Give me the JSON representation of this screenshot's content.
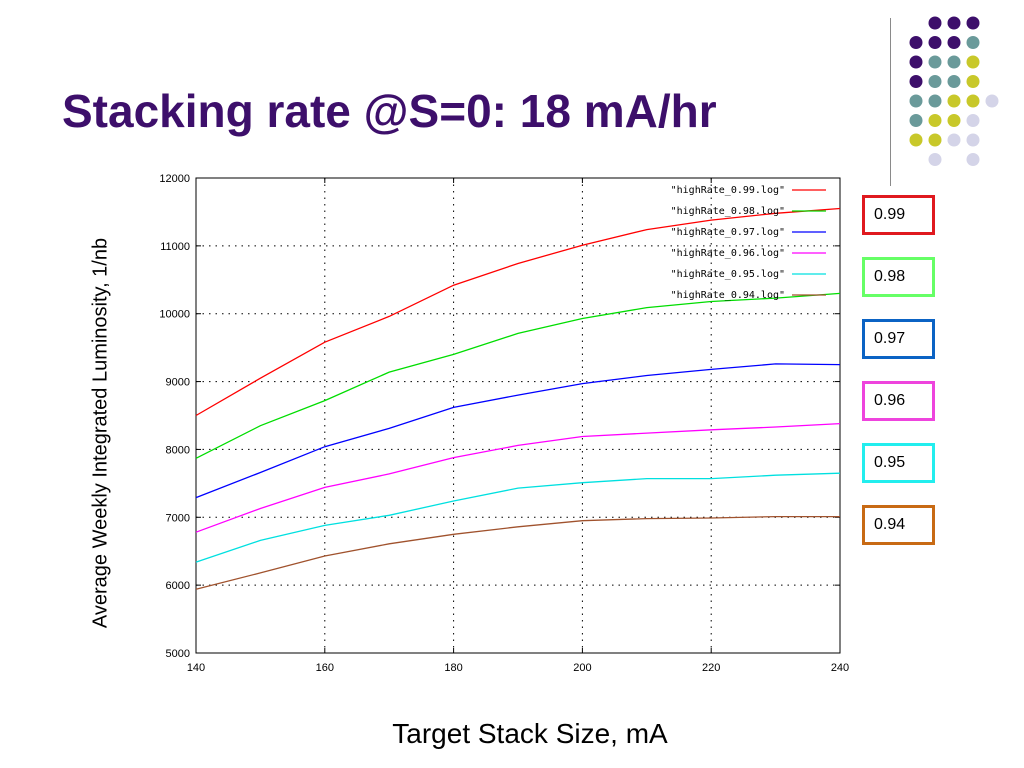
{
  "title": "Stacking rate @S=0: 18 mA/hr",
  "decoration_dot_colors": [
    "#3d0f6b",
    "#6a9a9a",
    "#c8c82a",
    "#d4d4e8"
  ],
  "chart_data": {
    "type": "line",
    "xlabel": "Target Stack Size, mA",
    "ylabel": "Average Weekly Integrated Luminosity, 1/nb",
    "xlim": [
      140,
      240
    ],
    "ylim": [
      5000,
      12000
    ],
    "x_ticks": [
      140,
      160,
      180,
      200,
      220,
      240
    ],
    "y_ticks": [
      5000,
      6000,
      7000,
      8000,
      9000,
      10000,
      11000,
      12000
    ],
    "grid": true,
    "legend_position": "top-right",
    "x": [
      140,
      150,
      160,
      170,
      180,
      190,
      200,
      210,
      220,
      230,
      240
    ],
    "series": [
      {
        "name": "\"highRate_0.99.log\"",
        "color": "#ff0000",
        "values": [
          8500,
          9050,
          9580,
          9960,
          10420,
          10740,
          11010,
          11240,
          11380,
          11480,
          11550
        ]
      },
      {
        "name": "\"highRate_0.98.log\"",
        "color": "#00dd00",
        "values": [
          7870,
          8350,
          8720,
          9140,
          9400,
          9710,
          9930,
          10090,
          10180,
          10230,
          10300
        ]
      },
      {
        "name": "\"highRate_0.97.log\"",
        "color": "#0000ff",
        "values": [
          7290,
          7660,
          8040,
          8310,
          8620,
          8800,
          8970,
          9090,
          9180,
          9260,
          9250
        ]
      },
      {
        "name": "\"highRate_0.96.log\"",
        "color": "#ff00ff",
        "values": [
          6780,
          7130,
          7440,
          7640,
          7880,
          8060,
          8190,
          8240,
          8290,
          8330,
          8380
        ]
      },
      {
        "name": "\"highRate_0.95.log\"",
        "color": "#00e0e0",
        "values": [
          6340,
          6660,
          6880,
          7030,
          7240,
          7430,
          7510,
          7570,
          7570,
          7620,
          7650
        ]
      },
      {
        "name": "\"highRate_0.94.log\"",
        "color": "#a0522d",
        "values": [
          5940,
          6180,
          6430,
          6610,
          6750,
          6860,
          6950,
          6980,
          6990,
          7010,
          7010
        ]
      }
    ]
  },
  "value_boxes": [
    {
      "label": "0.99",
      "color": "#e0191f"
    },
    {
      "label": "0.98",
      "color": "#66ff66"
    },
    {
      "label": "0.97",
      "color": "#0b63c4"
    },
    {
      "label": "0.96",
      "color": "#ee44dd"
    },
    {
      "label": "0.95",
      "color": "#22eeee"
    },
    {
      "label": "0.94",
      "color": "#c86a14"
    }
  ]
}
